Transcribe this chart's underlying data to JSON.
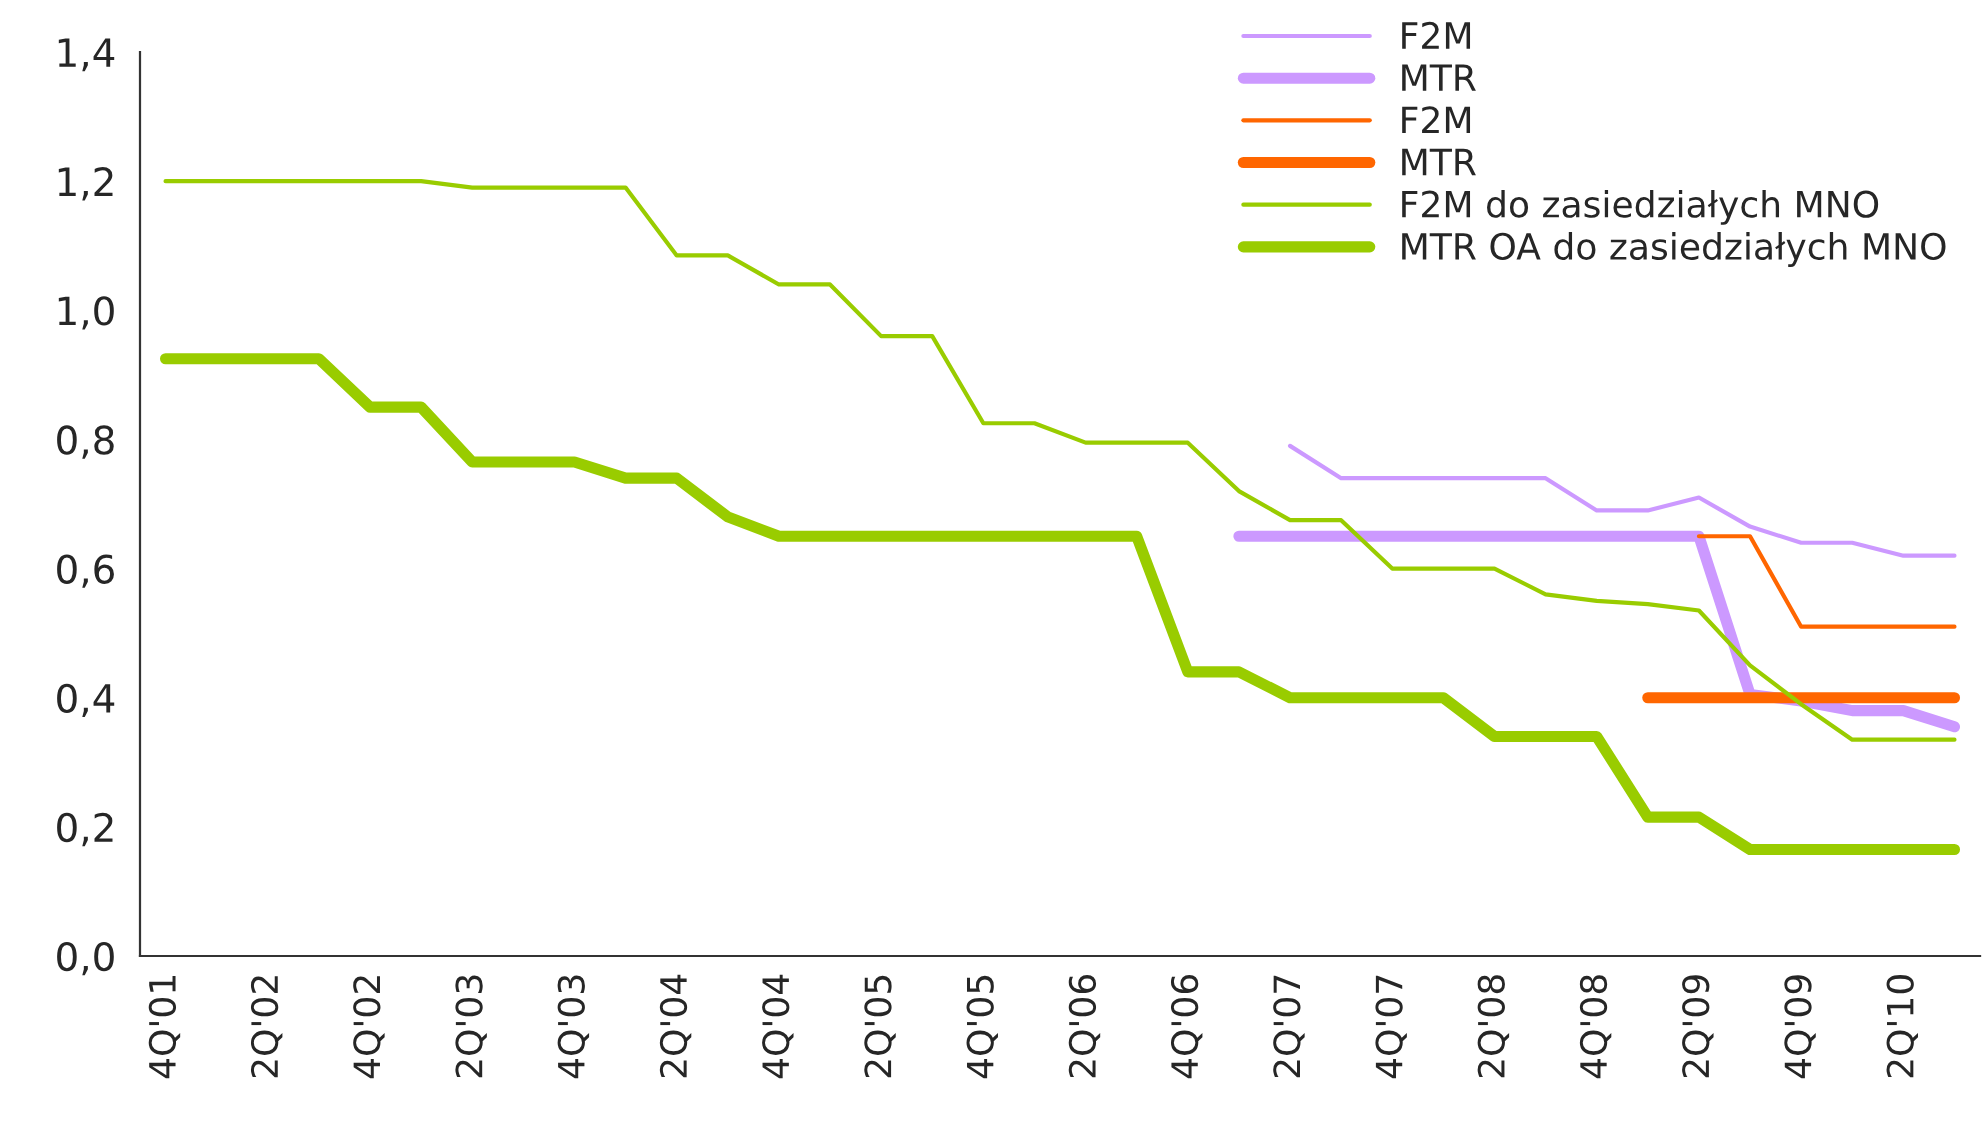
{
  "chart_data": {
    "type": "line",
    "categories": [
      "4Q'01",
      null,
      "2Q'02",
      null,
      "4Q'02",
      null,
      "2Q'03",
      null,
      "4Q'03",
      null,
      "2Q'04",
      null,
      "4Q'04",
      null,
      "2Q'05",
      null,
      "4Q'05",
      null,
      "2Q'06",
      null,
      "4Q'06",
      null,
      "2Q'07",
      null,
      "4Q'07",
      null,
      "2Q'08",
      null,
      "4Q'08",
      null,
      "2Q'09",
      null,
      "4Q'09",
      null,
      "2Q'10",
      null
    ],
    "series": [
      {
        "name": "F2M",
        "color": "#cc99ff",
        "values": [
          null,
          null,
          null,
          null,
          null,
          null,
          null,
          null,
          null,
          null,
          null,
          null,
          null,
          null,
          null,
          null,
          null,
          null,
          null,
          null,
          null,
          null,
          0.79,
          0.74,
          0.74,
          0.74,
          0.74,
          0.74,
          0.69,
          0.69,
          0.71,
          0.665,
          0.64,
          0.64,
          0.62,
          0.62
        ]
      },
      {
        "name": "MTR",
        "color": "#cc99ff",
        "values": [
          null,
          null,
          null,
          null,
          null,
          null,
          null,
          null,
          null,
          null,
          null,
          null,
          null,
          null,
          null,
          null,
          null,
          null,
          null,
          null,
          null,
          0.65,
          0.65,
          0.65,
          0.65,
          0.65,
          0.65,
          0.65,
          0.65,
          0.65,
          0.65,
          0.405,
          0.395,
          0.38,
          0.38,
          0.355
        ]
      },
      {
        "name": "F2M",
        "color": "#ff6600",
        "values": [
          null,
          null,
          null,
          null,
          null,
          null,
          null,
          null,
          null,
          null,
          null,
          null,
          null,
          null,
          null,
          null,
          null,
          null,
          null,
          null,
          null,
          null,
          null,
          null,
          null,
          null,
          null,
          null,
          null,
          null,
          0.65,
          0.65,
          0.51,
          0.51,
          0.51,
          0.51
        ]
      },
      {
        "name": "MTR",
        "color": "#ff6600",
        "values": [
          null,
          null,
          null,
          null,
          null,
          null,
          null,
          null,
          null,
          null,
          null,
          null,
          null,
          null,
          null,
          null,
          null,
          null,
          null,
          null,
          null,
          null,
          null,
          null,
          null,
          null,
          null,
          null,
          null,
          0.4,
          0.4,
          0.4,
          0.4,
          0.4,
          0.4,
          0.4
        ]
      },
      {
        "name": "F2M do zasiedziałych MNO",
        "color": "#99cc00",
        "values": [
          1.2,
          1.2,
          1.2,
          1.2,
          1.2,
          1.2,
          1.19,
          1.19,
          1.19,
          1.19,
          1.085,
          1.085,
          1.04,
          1.04,
          0.96,
          0.96,
          0.825,
          0.825,
          0.795,
          0.795,
          0.795,
          0.72,
          0.675,
          0.675,
          0.6,
          0.6,
          0.6,
          0.56,
          0.55,
          0.545,
          0.535,
          0.45,
          0.39,
          0.335,
          0.335,
          0.335
        ]
      },
      {
        "name": "MTR OA do zasiedziałych MNO",
        "color": "#99cc00",
        "values": [
          0.925,
          0.925,
          0.925,
          0.925,
          0.85,
          0.85,
          0.765,
          0.765,
          0.765,
          0.74,
          0.74,
          0.68,
          0.65,
          0.65,
          0.65,
          0.65,
          0.65,
          0.65,
          0.65,
          0.65,
          0.44,
          0.44,
          0.4,
          0.4,
          0.4,
          0.4,
          0.34,
          0.34,
          0.34,
          0.215,
          0.215,
          0.165,
          0.165,
          0.165,
          0.165,
          0.165
        ]
      }
    ],
    "ylim": [
      0,
      1.4
    ],
    "yticks": [
      {
        "value": 0,
        "label": "0,0"
      },
      {
        "value": 0.2,
        "label": "0,2"
      },
      {
        "value": 0.4,
        "label": "0,4"
      },
      {
        "value": 0.6,
        "label": "0,6"
      },
      {
        "value": 0.8,
        "label": "0,8"
      },
      {
        "value": 1.0,
        "label": "1,0"
      },
      {
        "value": 1.2,
        "label": "1,2"
      },
      {
        "value": 1.4,
        "label": "1,4"
      }
    ],
    "grid": false,
    "legend": "top right",
    "marker": "none",
    "line_style": "solid"
  }
}
